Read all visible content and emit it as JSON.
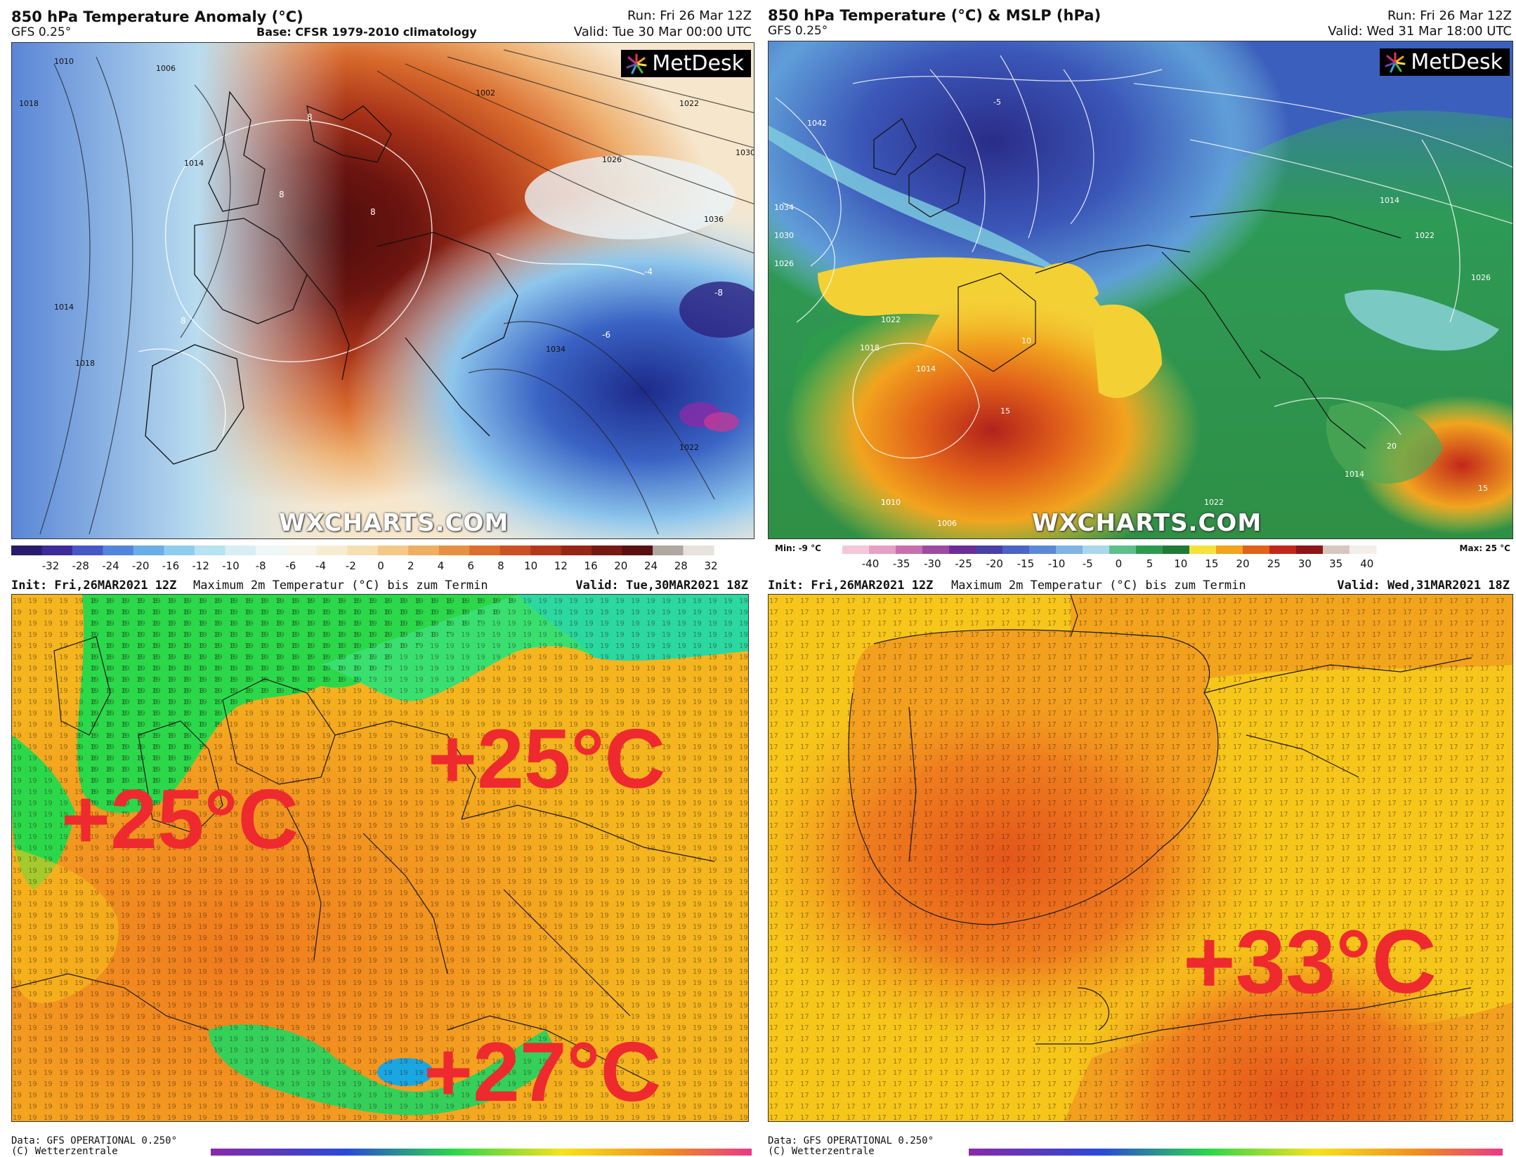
{
  "panels": {
    "top_left": {
      "title": "850 hPa Temperature Anomaly (°C)",
      "model": "GFS 0.25°",
      "base": "Base: CFSR 1979-2010 climatology",
      "run": "Run: Fri 26 Mar 12Z",
      "valid": "Valid: Tue 30 Mar 00:00 UTC",
      "logo": "MetDesk",
      "watermark": "WXCHARTS.COM",
      "scale_labels": [
        "-32",
        "-28",
        "-24",
        "-20",
        "-16",
        "-12",
        "-10",
        "-8",
        "-6",
        "-4",
        "-2",
        "0",
        "2",
        "4",
        "6",
        "8",
        "10",
        "12",
        "16",
        "20",
        "24",
        "28",
        "32"
      ],
      "scale_colors": [
        "#2a1a6e",
        "#3b2c9a",
        "#4757c6",
        "#5485de",
        "#6aaee8",
        "#8fcdee",
        "#b6e2f2",
        "#d8eef5",
        "#eef6f7",
        "#f7f4ea",
        "#f7ecd2",
        "#f6dfb1",
        "#f3c98a",
        "#eeaf63",
        "#e69044",
        "#db6f2f",
        "#cb5124",
        "#b4391c",
        "#962716",
        "#761912",
        "#5a0f10",
        "#b0a7a0",
        "#e8e2dc"
      ],
      "isobar_labels": [
        "1006",
        "1010",
        "1014",
        "1018",
        "1022",
        "1026",
        "1030",
        "1034",
        "1036"
      ],
      "anomaly_labels": [
        "8",
        "8",
        "8",
        "-4",
        "-8",
        "-8",
        "-6"
      ]
    },
    "top_right": {
      "title": "850 hPa Temperature (°C) & MSLP (hPa)",
      "model": "GFS 0.25°",
      "run": "Run: Fri 26 Mar 12Z",
      "valid": "Valid: Wed 31 Mar 18:00 UTC",
      "logo": "MetDesk",
      "watermark": "WXCHARTS.COM",
      "min_label": "Min: -9 °C",
      "max_label": "Max: 25 °C",
      "scale_labels": [
        "-40",
        "-35",
        "-30",
        "-25",
        "-20",
        "-15",
        "-10",
        "-5",
        "0",
        "5",
        "10",
        "15",
        "20",
        "25",
        "30",
        "35",
        "40"
      ],
      "scale_colors": [
        "#f4c7d8",
        "#e79fc3",
        "#c86fb0",
        "#9c4aa2",
        "#6c2e96",
        "#4b3fa8",
        "#4a63c4",
        "#5b89d8",
        "#7fb4e4",
        "#a8d8ec",
        "#5fbf8a",
        "#2c9a4c",
        "#1f7a36",
        "#f4e23a",
        "#f1a41e",
        "#e1621a",
        "#c3271b",
        "#8f1418",
        "#d7c6bf",
        "#f3eeea"
      ],
      "isobar_labels": [
        "1042",
        "1034",
        "1030",
        "1026",
        "1022",
        "1018",
        "1014",
        "1010",
        "1006",
        "1014",
        "1022",
        "1026",
        "1014"
      ],
      "temp_labels": [
        "-5",
        "10",
        "15",
        "20",
        "10",
        "15"
      ]
    },
    "bottom_left": {
      "init": "Init: Fri,26MAR2021 12Z",
      "title": "Maximum 2m Temperatur (°C) bis zum Termin",
      "valid": "Valid: Tue,30MAR2021 18Z",
      "footer_line1": "Data: GFS OPERATIONAL 0.250°",
      "footer_line2": "(C) Wetterzentrale",
      "annotations": [
        "+25°C",
        "+25°C",
        "+27°C"
      ]
    },
    "bottom_right": {
      "init": "Init: Fri,26MAR2021 12Z",
      "title": "Maximum 2m Temperatur (°C) bis zum Termin",
      "valid": "Valid: Wed,31MAR2021 18Z",
      "footer_line1": "Data: GFS OPERATIONAL 0.250°",
      "footer_line2": "(C) Wetterzentrale",
      "annotations": [
        "+33°C"
      ]
    }
  },
  "colors": {
    "annotation": "#ee2a2e",
    "wz_green": "#2ad84a",
    "wz_orange": "#f08a1e",
    "wz_yellow": "#f7c21a"
  }
}
